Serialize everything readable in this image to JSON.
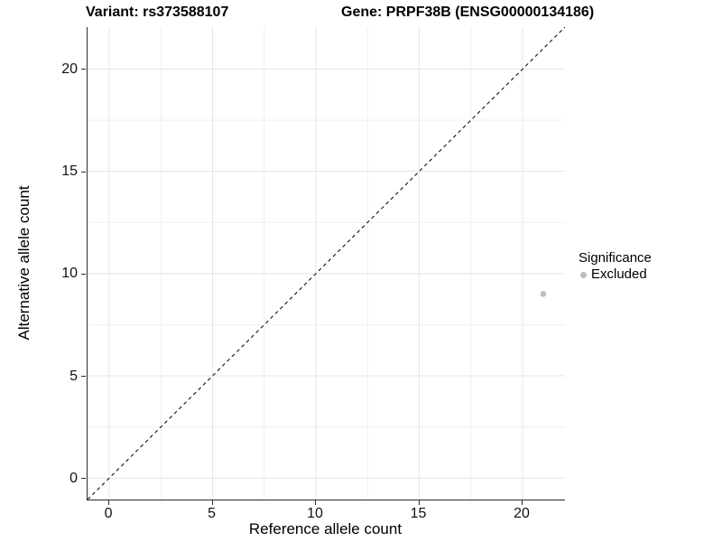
{
  "titles": {
    "variant": "Variant: rs373588107",
    "gene": "Gene: PRPF38B (ENSG00000134186)"
  },
  "chart_data": {
    "type": "scatter",
    "title": "Variant: rs373588107 — Gene: PRPF38B (ENSG00000134186)",
    "xlabel": "Reference allele count",
    "ylabel": "Alternative allele count",
    "xlim": [
      -1.05,
      22.05
    ],
    "ylim": [
      -1.05,
      22.05
    ],
    "x_ticks": [
      0,
      5,
      10,
      15,
      20
    ],
    "y_ticks": [
      0,
      5,
      10,
      15,
      20
    ],
    "minor_gridlines": [
      2.5,
      7.5,
      12.5,
      17.5
    ],
    "grid": "major+minor",
    "reference_line": {
      "type": "identity y=x",
      "style": "dashed",
      "color": "#111111"
    },
    "series": [
      {
        "name": "Excluded",
        "color": "#bdbdbd",
        "points": [
          [
            21,
            9
          ]
        ]
      }
    ],
    "legend": {
      "position": "right",
      "title": "Significance",
      "items": [
        {
          "label": "Excluded",
          "color": "#bdbdbd"
        }
      ]
    },
    "colors": {
      "grid_major": "#e5e5e5",
      "grid_minor": "#efefef",
      "axis_line": "#2b2b2b",
      "tick_text": "#111111",
      "point": "#bdbdbd"
    }
  }
}
